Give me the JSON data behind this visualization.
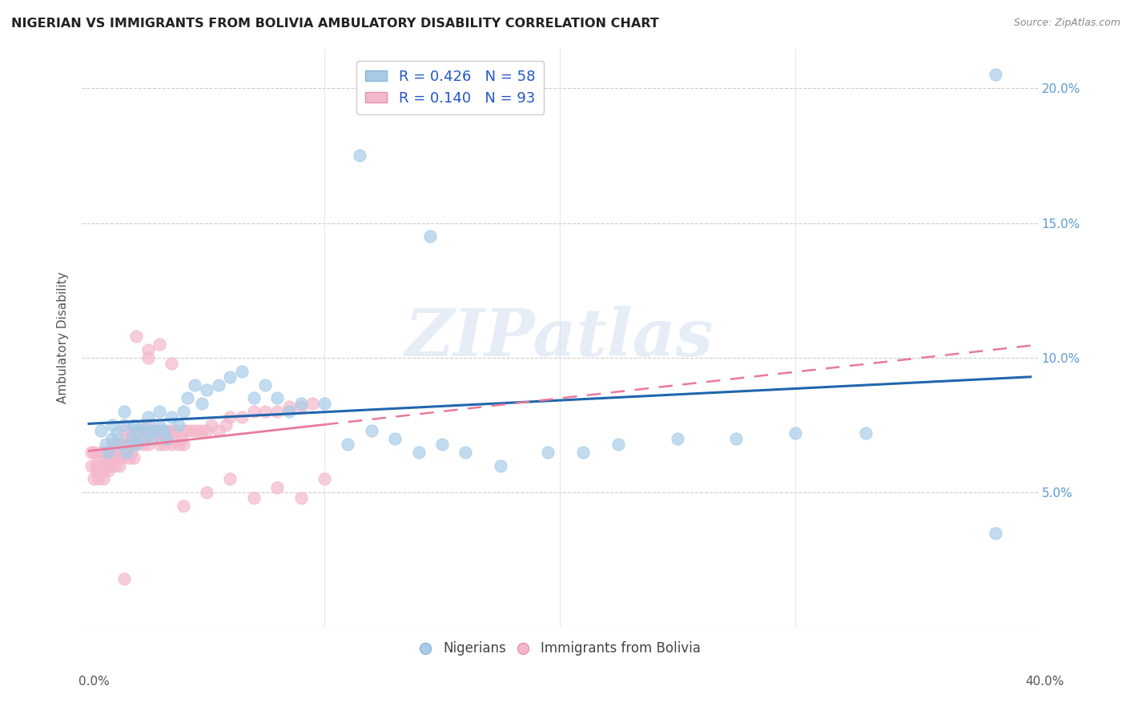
{
  "title": "NIGERIAN VS IMMIGRANTS FROM BOLIVIA AMBULATORY DISABILITY CORRELATION CHART",
  "source": "Source: ZipAtlas.com",
  "ylabel": "Ambulatory Disability",
  "legend1_label": "R = 0.426   N = 58",
  "legend2_label": "R = 0.140   N = 93",
  "legend_bottom1": "Nigerians",
  "legend_bottom2": "Immigrants from Bolivia",
  "blue_scatter_color": "#a8cce8",
  "blue_line_color": "#2166ac",
  "pink_scatter_color": "#f4b8cb",
  "pink_line_color": "#e87a9a",
  "watermark": "ZIPatlas",
  "R_blue": 0.426,
  "N_blue": 58,
  "R_pink": 0.14,
  "N_pink": 93,
  "xmin": 0.0,
  "xmax": 0.4,
  "ymin": 0.0,
  "ymax": 0.215,
  "ytick_vals": [
    0.05,
    0.1,
    0.15,
    0.2
  ],
  "ytick_labels": [
    "5.0%",
    "10.0%",
    "15.0%",
    "20.0%"
  ],
  "xtick_minor_vals": [
    0.1,
    0.2,
    0.3
  ],
  "blue_x": [
    0.005,
    0.007,
    0.008,
    0.01,
    0.01,
    0.012,
    0.013,
    0.015,
    0.015,
    0.016,
    0.018,
    0.019,
    0.02,
    0.02,
    0.022,
    0.023,
    0.025,
    0.025,
    0.027,
    0.028,
    0.03,
    0.03,
    0.032,
    0.033,
    0.035,
    0.038,
    0.04,
    0.042,
    0.045,
    0.048,
    0.05,
    0.055,
    0.06,
    0.065,
    0.07,
    0.075,
    0.08,
    0.085,
    0.09,
    0.1,
    0.11,
    0.12,
    0.13,
    0.14,
    0.15,
    0.16,
    0.175,
    0.195,
    0.21,
    0.225,
    0.25,
    0.275,
    0.3,
    0.33,
    0.115,
    0.145,
    0.385,
    0.385
  ],
  "blue_y": [
    0.073,
    0.068,
    0.065,
    0.07,
    0.075,
    0.072,
    0.068,
    0.075,
    0.08,
    0.065,
    0.07,
    0.075,
    0.068,
    0.073,
    0.07,
    0.075,
    0.073,
    0.078,
    0.07,
    0.073,
    0.075,
    0.08,
    0.073,
    0.07,
    0.078,
    0.075,
    0.08,
    0.085,
    0.09,
    0.083,
    0.088,
    0.09,
    0.093,
    0.095,
    0.085,
    0.09,
    0.085,
    0.08,
    0.083,
    0.083,
    0.068,
    0.073,
    0.07,
    0.065,
    0.068,
    0.065,
    0.06,
    0.065,
    0.065,
    0.068,
    0.07,
    0.07,
    0.072,
    0.072,
    0.175,
    0.145,
    0.205,
    0.035
  ],
  "pink_x": [
    0.001,
    0.001,
    0.002,
    0.002,
    0.003,
    0.003,
    0.004,
    0.004,
    0.005,
    0.005,
    0.006,
    0.006,
    0.007,
    0.007,
    0.008,
    0.008,
    0.009,
    0.009,
    0.01,
    0.01,
    0.011,
    0.011,
    0.012,
    0.012,
    0.013,
    0.013,
    0.014,
    0.014,
    0.015,
    0.015,
    0.016,
    0.016,
    0.017,
    0.017,
    0.018,
    0.018,
    0.019,
    0.019,
    0.02,
    0.02,
    0.021,
    0.022,
    0.023,
    0.024,
    0.025,
    0.025,
    0.026,
    0.027,
    0.028,
    0.029,
    0.03,
    0.03,
    0.031,
    0.032,
    0.033,
    0.034,
    0.035,
    0.035,
    0.036,
    0.037,
    0.038,
    0.039,
    0.04,
    0.04,
    0.042,
    0.044,
    0.046,
    0.048,
    0.05,
    0.052,
    0.055,
    0.058,
    0.06,
    0.065,
    0.07,
    0.075,
    0.08,
    0.085,
    0.09,
    0.095,
    0.05,
    0.06,
    0.07,
    0.08,
    0.09,
    0.1,
    0.025,
    0.03,
    0.035,
    0.04,
    0.02,
    0.025,
    0.015
  ],
  "pink_y": [
    0.065,
    0.06,
    0.065,
    0.055,
    0.06,
    0.058,
    0.062,
    0.055,
    0.065,
    0.06,
    0.058,
    0.055,
    0.062,
    0.065,
    0.06,
    0.058,
    0.065,
    0.06,
    0.068,
    0.063,
    0.068,
    0.06,
    0.065,
    0.063,
    0.065,
    0.06,
    0.068,
    0.063,
    0.073,
    0.065,
    0.07,
    0.065,
    0.068,
    0.063,
    0.073,
    0.065,
    0.07,
    0.063,
    0.073,
    0.068,
    0.07,
    0.073,
    0.068,
    0.073,
    0.075,
    0.068,
    0.073,
    0.07,
    0.073,
    0.07,
    0.073,
    0.068,
    0.07,
    0.068,
    0.07,
    0.073,
    0.073,
    0.068,
    0.07,
    0.073,
    0.068,
    0.07,
    0.073,
    0.068,
    0.073,
    0.073,
    0.073,
    0.073,
    0.073,
    0.075,
    0.073,
    0.075,
    0.078,
    0.078,
    0.08,
    0.08,
    0.08,
    0.082,
    0.082,
    0.083,
    0.05,
    0.055,
    0.048,
    0.052,
    0.048,
    0.055,
    0.1,
    0.105,
    0.098,
    0.045,
    0.108,
    0.103,
    0.018
  ]
}
